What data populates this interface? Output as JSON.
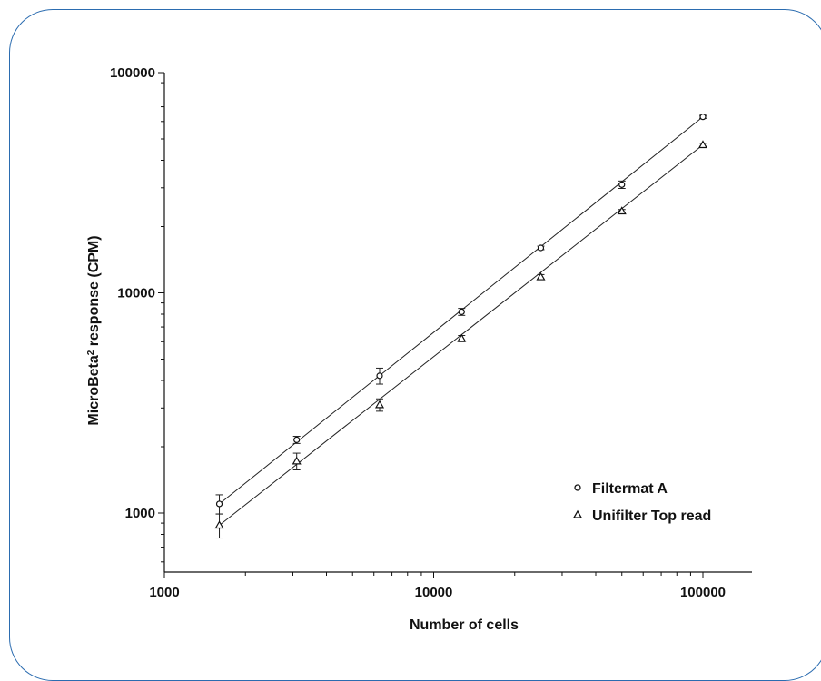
{
  "chart_data": {
    "type": "scatter",
    "xlabel": "Number of cells",
    "ylabel_main": "MicroBeta",
    "ylabel_sup": "2",
    "ylabel_tail": " response (CPM)",
    "xscale": "log",
    "yscale": "log",
    "xlim": [
      1000,
      150000
    ],
    "ylim": [
      550,
      100000
    ],
    "x_ticks": [
      1000,
      10000,
      100000
    ],
    "y_ticks": [
      1000,
      10000,
      100000
    ],
    "x_tick_labels": [
      "1000",
      "10000",
      "100000"
    ],
    "y_tick_labels": [
      "1000",
      "10000",
      "100000"
    ],
    "grid": false,
    "legend_position": "bottom-right",
    "series": [
      {
        "name": "Filtermat A",
        "marker": "circle",
        "x": [
          1600,
          3100,
          6300,
          12700,
          25000,
          50000,
          100000
        ],
        "y": [
          1100,
          2150,
          4200,
          8200,
          16000,
          31000,
          63000
        ],
        "err": [
          110,
          80,
          350,
          300,
          300,
          1200,
          1000
        ]
      },
      {
        "name": "Unifilter Top read",
        "marker": "triangle",
        "x": [
          1600,
          3100,
          6300,
          12700,
          25000,
          50000,
          100000
        ],
        "y": [
          880,
          1720,
          3100,
          6200,
          11800,
          23500,
          47000
        ],
        "err": [
          110,
          150,
          200,
          200,
          300,
          400,
          800
        ]
      }
    ]
  }
}
